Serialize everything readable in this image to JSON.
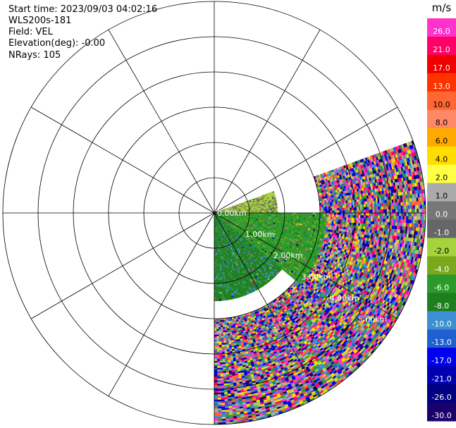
{
  "header": {
    "start_time_label": "Start time:",
    "start_time_value": "2023/09/03 04:02:16",
    "instrument": "WLS200s-181",
    "field_label": "Field:",
    "field_value": "VEL",
    "elevation_label": "Elevation(deg):",
    "elevation_value": "-0.00",
    "nrays_label": "NRays:",
    "nrays_value": "105"
  },
  "chart_data": {
    "type": "heatmap",
    "projection": "polar PPI",
    "field": "VEL",
    "units": "m/s",
    "range_rings_km": [
      1.0,
      2.0,
      3.0,
      4.0,
      5.0
    ],
    "range_ring_labels": [
      "0.00km",
      "1.00km",
      "2.00km",
      "3.00km",
      "4.00km",
      "5.00km"
    ],
    "max_range_km": 6.0,
    "azimuth_spokes_deg": [
      0,
      30,
      60,
      90,
      120,
      150,
      180,
      210,
      240,
      270,
      300,
      330
    ],
    "scan_sector_deg": {
      "start": 70,
      "end": 180
    },
    "n_rays": 105,
    "colorbar": {
      "unit_label": "m/s",
      "tick_labels": [
        "26.0",
        "21.0",
        "17.0",
        "13.0",
        "10.0",
        "8.0",
        "6.0",
        "4.0",
        "2.0",
        "1.0",
        "0.0",
        "-1.0",
        "-2.0",
        "-4.0",
        "-6.0",
        "-8.0",
        "-10.0",
        "-13.0",
        "-17.0",
        "-21.0",
        "-26.0",
        "-30.0"
      ],
      "colors": [
        "#ff33cc",
        "#ff0066",
        "#ee0000",
        "#ff3300",
        "#ff6633",
        "#ff8866",
        "#ffaa00",
        "#ffdd00",
        "#ffff44",
        "#aaaaaa",
        "#777777",
        "#666666",
        "#a6d23c",
        "#7aa81c",
        "#2b9a2b",
        "#1f7f1f",
        "#3c8fd0",
        "#1f5fd0",
        "#0000ee",
        "#0000b0",
        "#000080",
        "#1a006a"
      ]
    },
    "velocity_pattern": [
      {
        "azimuth_range_deg": [
          70,
          90
        ],
        "range_km": [
          0,
          1.8
        ],
        "velocity_ms": -2.0
      },
      {
        "azimuth_range_deg": [
          90,
          130
        ],
        "range_km": [
          0,
          3.2
        ],
        "velocity_ms": -6.0
      },
      {
        "azimuth_range_deg": [
          130,
          180
        ],
        "range_km": [
          0,
          2.5
        ],
        "velocity_ms": -8.0
      },
      {
        "azimuth_range_deg": [
          70,
          180
        ],
        "range_km": [
          3.0,
          6.0
        ],
        "velocity_ms": "noise"
      }
    ]
  }
}
